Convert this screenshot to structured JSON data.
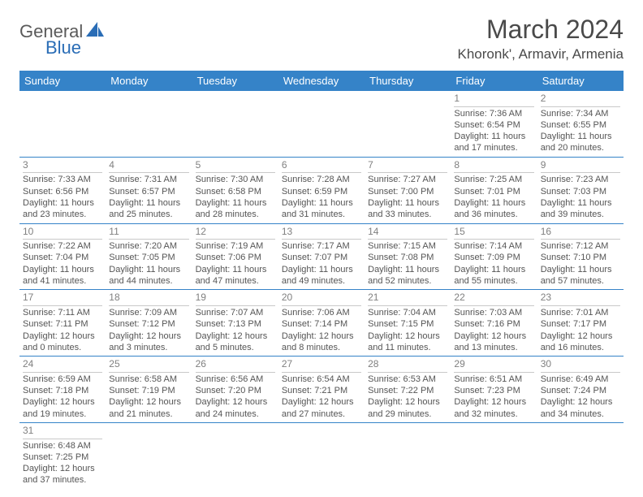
{
  "logo": {
    "general": "General",
    "blue": "Blue"
  },
  "title": "March 2024",
  "location": "Khoronk', Armavir, Armenia",
  "colors": {
    "headerBg": "#3583c8",
    "headerText": "#ffffff",
    "text": "#555555",
    "border": "#3583c8"
  },
  "weekdays": [
    "Sunday",
    "Monday",
    "Tuesday",
    "Wednesday",
    "Thursday",
    "Friday",
    "Saturday"
  ],
  "rows": [
    [
      null,
      null,
      null,
      null,
      null,
      {
        "n": "1",
        "sr": "7:36 AM",
        "ss": "6:54 PM",
        "dl1": "11 hours",
        "dl2": "and 17 minutes."
      },
      {
        "n": "2",
        "sr": "7:34 AM",
        "ss": "6:55 PM",
        "dl1": "11 hours",
        "dl2": "and 20 minutes."
      }
    ],
    [
      {
        "n": "3",
        "sr": "7:33 AM",
        "ss": "6:56 PM",
        "dl1": "11 hours",
        "dl2": "and 23 minutes."
      },
      {
        "n": "4",
        "sr": "7:31 AM",
        "ss": "6:57 PM",
        "dl1": "11 hours",
        "dl2": "and 25 minutes."
      },
      {
        "n": "5",
        "sr": "7:30 AM",
        "ss": "6:58 PM",
        "dl1": "11 hours",
        "dl2": "and 28 minutes."
      },
      {
        "n": "6",
        "sr": "7:28 AM",
        "ss": "6:59 PM",
        "dl1": "11 hours",
        "dl2": "and 31 minutes."
      },
      {
        "n": "7",
        "sr": "7:27 AM",
        "ss": "7:00 PM",
        "dl1": "11 hours",
        "dl2": "and 33 minutes."
      },
      {
        "n": "8",
        "sr": "7:25 AM",
        "ss": "7:01 PM",
        "dl1": "11 hours",
        "dl2": "and 36 minutes."
      },
      {
        "n": "9",
        "sr": "7:23 AM",
        "ss": "7:03 PM",
        "dl1": "11 hours",
        "dl2": "and 39 minutes."
      }
    ],
    [
      {
        "n": "10",
        "sr": "7:22 AM",
        "ss": "7:04 PM",
        "dl1": "11 hours",
        "dl2": "and 41 minutes."
      },
      {
        "n": "11",
        "sr": "7:20 AM",
        "ss": "7:05 PM",
        "dl1": "11 hours",
        "dl2": "and 44 minutes."
      },
      {
        "n": "12",
        "sr": "7:19 AM",
        "ss": "7:06 PM",
        "dl1": "11 hours",
        "dl2": "and 47 minutes."
      },
      {
        "n": "13",
        "sr": "7:17 AM",
        "ss": "7:07 PM",
        "dl1": "11 hours",
        "dl2": "and 49 minutes."
      },
      {
        "n": "14",
        "sr": "7:15 AM",
        "ss": "7:08 PM",
        "dl1": "11 hours",
        "dl2": "and 52 minutes."
      },
      {
        "n": "15",
        "sr": "7:14 AM",
        "ss": "7:09 PM",
        "dl1": "11 hours",
        "dl2": "and 55 minutes."
      },
      {
        "n": "16",
        "sr": "7:12 AM",
        "ss": "7:10 PM",
        "dl1": "11 hours",
        "dl2": "and 57 minutes."
      }
    ],
    [
      {
        "n": "17",
        "sr": "7:11 AM",
        "ss": "7:11 PM",
        "dl1": "12 hours",
        "dl2": "and 0 minutes."
      },
      {
        "n": "18",
        "sr": "7:09 AM",
        "ss": "7:12 PM",
        "dl1": "12 hours",
        "dl2": "and 3 minutes."
      },
      {
        "n": "19",
        "sr": "7:07 AM",
        "ss": "7:13 PM",
        "dl1": "12 hours",
        "dl2": "and 5 minutes."
      },
      {
        "n": "20",
        "sr": "7:06 AM",
        "ss": "7:14 PM",
        "dl1": "12 hours",
        "dl2": "and 8 minutes."
      },
      {
        "n": "21",
        "sr": "7:04 AM",
        "ss": "7:15 PM",
        "dl1": "12 hours",
        "dl2": "and 11 minutes."
      },
      {
        "n": "22",
        "sr": "7:03 AM",
        "ss": "7:16 PM",
        "dl1": "12 hours",
        "dl2": "and 13 minutes."
      },
      {
        "n": "23",
        "sr": "7:01 AM",
        "ss": "7:17 PM",
        "dl1": "12 hours",
        "dl2": "and 16 minutes."
      }
    ],
    [
      {
        "n": "24",
        "sr": "6:59 AM",
        "ss": "7:18 PM",
        "dl1": "12 hours",
        "dl2": "and 19 minutes."
      },
      {
        "n": "25",
        "sr": "6:58 AM",
        "ss": "7:19 PM",
        "dl1": "12 hours",
        "dl2": "and 21 minutes."
      },
      {
        "n": "26",
        "sr": "6:56 AM",
        "ss": "7:20 PM",
        "dl1": "12 hours",
        "dl2": "and 24 minutes."
      },
      {
        "n": "27",
        "sr": "6:54 AM",
        "ss": "7:21 PM",
        "dl1": "12 hours",
        "dl2": "and 27 minutes."
      },
      {
        "n": "28",
        "sr": "6:53 AM",
        "ss": "7:22 PM",
        "dl1": "12 hours",
        "dl2": "and 29 minutes."
      },
      {
        "n": "29",
        "sr": "6:51 AM",
        "ss": "7:23 PM",
        "dl1": "12 hours",
        "dl2": "and 32 minutes."
      },
      {
        "n": "30",
        "sr": "6:49 AM",
        "ss": "7:24 PM",
        "dl1": "12 hours",
        "dl2": "and 34 minutes."
      }
    ],
    [
      {
        "n": "31",
        "sr": "6:48 AM",
        "ss": "7:25 PM",
        "dl1": "12 hours",
        "dl2": "and 37 minutes."
      },
      null,
      null,
      null,
      null,
      null,
      null
    ]
  ]
}
